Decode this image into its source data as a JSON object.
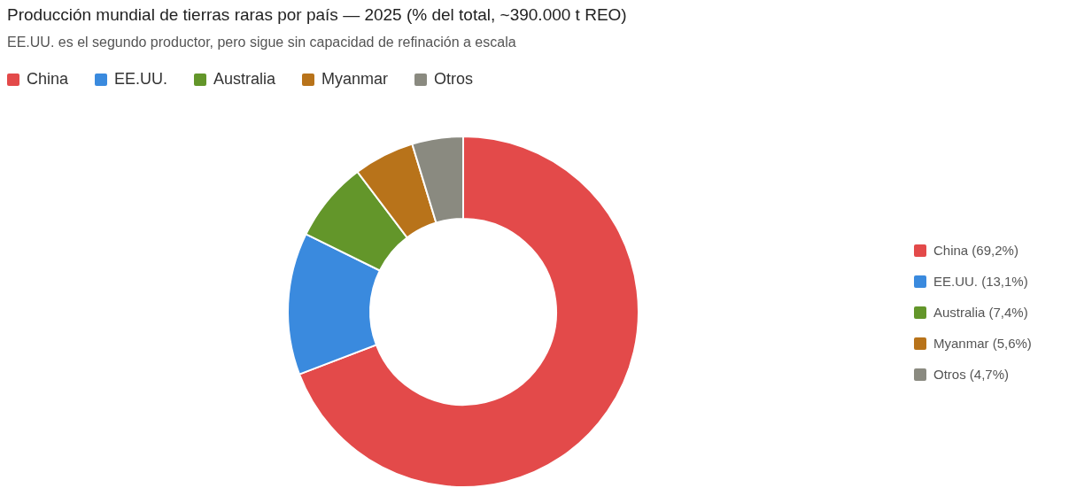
{
  "chart_data": {
    "type": "donut",
    "title": "Producción mundial de tierras raras por país — 2025 (% del total, ~390.000 t REO)",
    "subtitle": "EE.UU. es el segundo productor, pero sigue sin capacidad de refinación a escala",
    "categories": [
      "China",
      "EE.UU.",
      "Australia",
      "Myanmar",
      "Otros"
    ],
    "values": [
      69.2,
      13.1,
      7.4,
      5.6,
      4.7
    ],
    "value_labels": [
      "(69,2%)",
      "(13,1%)",
      "(7,4%)",
      "(5,6%)",
      "(4,7%)"
    ],
    "colors": [
      "#e34a4a",
      "#3a8ade",
      "#63962a",
      "#b8731a",
      "#8a8a80"
    ],
    "legend": "top"
  }
}
